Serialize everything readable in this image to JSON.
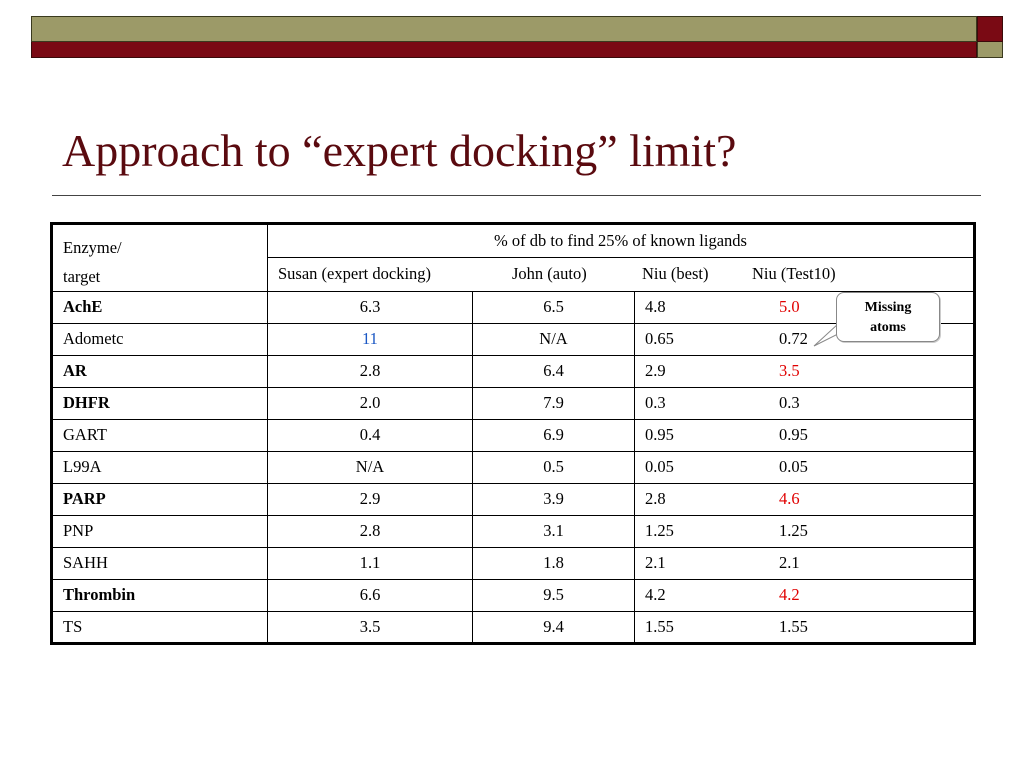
{
  "slide": {
    "title": "Approach to “expert docking” limit?",
    "colors": {
      "title": "#5a0a0f",
      "bar_olive": "#9c9a68",
      "bar_red": "#7a0a14",
      "highlight_red": "#e00000",
      "highlight_blue": "#1a57c4"
    }
  },
  "table": {
    "header": {
      "enzyme_line1": "Enzyme/",
      "enzyme_line2": "target",
      "group_label": "% of db to find 25% of known ligands",
      "columns": [
        "Susan (expert docking)",
        "John (auto)",
        "Niu (best)",
        "Niu (Test10)"
      ]
    },
    "rows": [
      {
        "name": "AchE",
        "bold": true,
        "susan": "6.3",
        "john": "6.5",
        "niu_best": "4.8",
        "niu_test10": "5.0",
        "susan_color": "",
        "test10_color": "red"
      },
      {
        "name": "Adometc",
        "bold": false,
        "susan": "11",
        "john": "N/A",
        "niu_best": "0.65",
        "niu_test10": "0.72",
        "susan_color": "blue",
        "test10_color": ""
      },
      {
        "name": "AR",
        "bold": true,
        "susan": "2.8",
        "john": "6.4",
        "niu_best": "2.9",
        "niu_test10": "3.5",
        "susan_color": "",
        "test10_color": "red"
      },
      {
        "name": "DHFR",
        "bold": true,
        "susan": "2.0",
        "john": "7.9",
        "niu_best": "0.3",
        "niu_test10": "0.3",
        "susan_color": "",
        "test10_color": ""
      },
      {
        "name": "GART",
        "bold": false,
        "susan": "0.4",
        "john": "6.9",
        "niu_best": "0.95",
        "niu_test10": "0.95",
        "susan_color": "",
        "test10_color": ""
      },
      {
        "name": "L99A",
        "bold": false,
        "susan": "N/A",
        "john": "0.5",
        "niu_best": "0.05",
        "niu_test10": "0.05",
        "susan_color": "",
        "test10_color": ""
      },
      {
        "name": "PARP",
        "bold": true,
        "susan": "2.9",
        "john": "3.9",
        "niu_best": "2.8",
        "niu_test10": "4.6",
        "susan_color": "",
        "test10_color": "red"
      },
      {
        "name": "PNP",
        "bold": false,
        "susan": "2.8",
        "john": "3.1",
        "niu_best": "1.25",
        "niu_test10": "1.25",
        "susan_color": "",
        "test10_color": ""
      },
      {
        "name": "SAHH",
        "bold": false,
        "susan": "1.1",
        "john": "1.8",
        "niu_best": "2.1",
        "niu_test10": "2.1",
        "susan_color": "",
        "test10_color": ""
      },
      {
        "name": "Thrombin",
        "bold": true,
        "susan": "6.6",
        "john": "9.5",
        "niu_best": "4.2",
        "niu_test10": "4.2",
        "susan_color": "",
        "test10_color": "red"
      },
      {
        "name": "TS",
        "bold": false,
        "susan": "3.5",
        "john": "9.4",
        "niu_best": "1.55",
        "niu_test10": "1.55",
        "susan_color": "",
        "test10_color": ""
      }
    ]
  },
  "callout": {
    "line1": "Missing",
    "line2": "atoms"
  }
}
